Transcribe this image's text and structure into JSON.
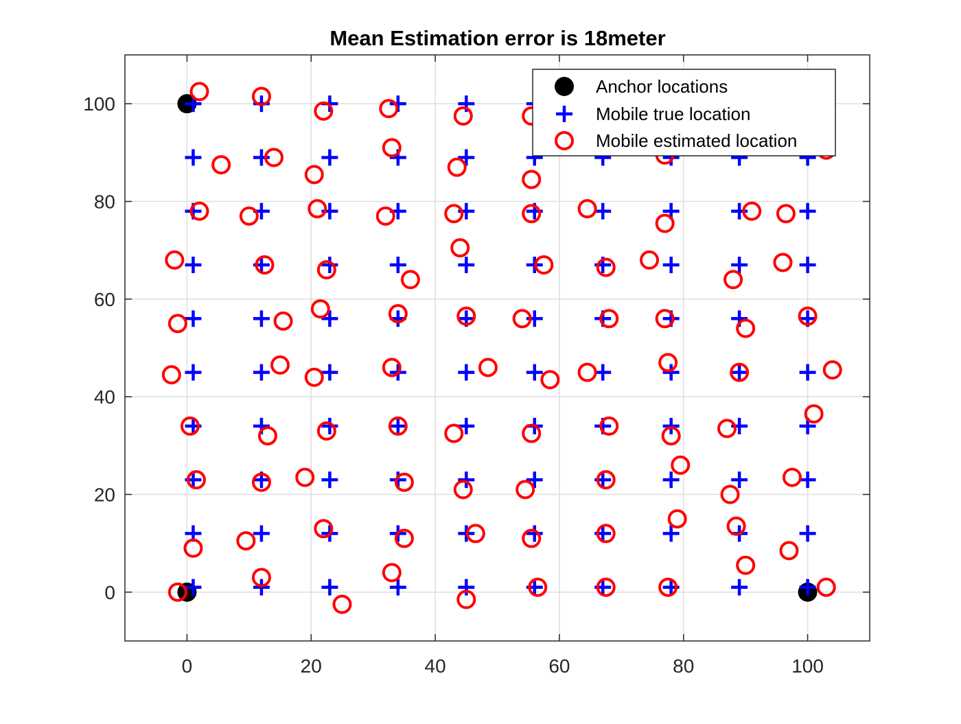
{
  "chart_data": {
    "type": "scatter",
    "title": "Mean Estimation error is 18meter",
    "xlabel": "",
    "ylabel": "",
    "xlim": [
      -10,
      110
    ],
    "ylim": [
      -10,
      110
    ],
    "xticks": [
      0,
      20,
      40,
      60,
      80,
      100
    ],
    "yticks": [
      0,
      20,
      40,
      60,
      80,
      100
    ],
    "grid": true,
    "legend_position": "top-right",
    "series": [
      {
        "name": "Anchor locations",
        "marker": "filled-circle",
        "color": "#000000",
        "points": [
          [
            0,
            100
          ],
          [
            0,
            0
          ],
          [
            100,
            0
          ]
        ]
      },
      {
        "name": "Mobile true location",
        "marker": "plus",
        "color": "#0000ff",
        "x_grid": [
          1,
          12,
          23,
          34,
          45,
          56,
          67,
          78,
          89,
          100
        ],
        "y_grid": [
          1,
          12,
          23,
          34,
          45,
          56,
          67,
          78,
          89,
          100
        ]
      },
      {
        "name": "Mobile estimated location",
        "marker": "open-circle",
        "color": "#ff0000",
        "points": [
          [
            -1.5,
            0
          ],
          [
            12,
            3
          ],
          [
            25,
            -2.5
          ],
          [
            33,
            4
          ],
          [
            45,
            -1.5
          ],
          [
            56.5,
            1
          ],
          [
            67.5,
            1
          ],
          [
            77.5,
            1
          ],
          [
            103,
            1
          ],
          [
            1,
            9
          ],
          [
            9.5,
            10.5
          ],
          [
            22,
            13
          ],
          [
            35,
            11
          ],
          [
            46.5,
            12
          ],
          [
            55.5,
            11
          ],
          [
            67.5,
            12
          ],
          [
            79,
            15
          ],
          [
            88.5,
            13.5
          ],
          [
            90,
            5.5
          ],
          [
            97,
            8.5
          ],
          [
            1.5,
            23
          ],
          [
            12,
            22.5
          ],
          [
            19,
            23.5
          ],
          [
            35,
            22.5
          ],
          [
            44.5,
            21
          ],
          [
            54.5,
            21
          ],
          [
            67.5,
            23
          ],
          [
            79.5,
            26
          ],
          [
            87.5,
            20
          ],
          [
            97.5,
            23.5
          ],
          [
            0.5,
            34
          ],
          [
            13,
            32
          ],
          [
            22.5,
            33
          ],
          [
            34,
            34
          ],
          [
            43,
            32.5
          ],
          [
            55.5,
            32.5
          ],
          [
            68,
            34
          ],
          [
            78,
            32
          ],
          [
            87,
            33.5
          ],
          [
            101,
            36.5
          ],
          [
            -2.5,
            44.5
          ],
          [
            15,
            46.5
          ],
          [
            20.5,
            44
          ],
          [
            33,
            46
          ],
          [
            48.5,
            46
          ],
          [
            58.5,
            43.5
          ],
          [
            64.5,
            45
          ],
          [
            77.5,
            47
          ],
          [
            89,
            45
          ],
          [
            104,
            45.5
          ],
          [
            -1.5,
            55
          ],
          [
            15.5,
            55.5
          ],
          [
            21.5,
            58
          ],
          [
            34,
            57
          ],
          [
            45,
            56.5
          ],
          [
            54,
            56
          ],
          [
            68,
            56
          ],
          [
            77,
            56
          ],
          [
            90,
            54
          ],
          [
            100,
            56.5
          ],
          [
            -2,
            68
          ],
          [
            12.5,
            67
          ],
          [
            22.5,
            66
          ],
          [
            36,
            64
          ],
          [
            44,
            70.5
          ],
          [
            57.5,
            67
          ],
          [
            67.5,
            66.5
          ],
          [
            74.5,
            68
          ],
          [
            88,
            64
          ],
          [
            96,
            67.5
          ],
          [
            2,
            78
          ],
          [
            10,
            77
          ],
          [
            21,
            78.5
          ],
          [
            32,
            77
          ],
          [
            43,
            77.5
          ],
          [
            55.5,
            77.5
          ],
          [
            64.5,
            78.5
          ],
          [
            77,
            75.5
          ],
          [
            91,
            78
          ],
          [
            96.5,
            77.5
          ],
          [
            5.5,
            87.5
          ],
          [
            14,
            89
          ],
          [
            20.5,
            85.5
          ],
          [
            33,
            91
          ],
          [
            43.5,
            87
          ],
          [
            55.5,
            84.5
          ],
          [
            77,
            89.5
          ],
          [
            103,
            90.5
          ],
          [
            2,
            102.5
          ],
          [
            12,
            101.5
          ],
          [
            22,
            98.5
          ],
          [
            32.5,
            99
          ],
          [
            44.5,
            97.5
          ],
          [
            55.5,
            97.5
          ]
        ]
      }
    ]
  }
}
